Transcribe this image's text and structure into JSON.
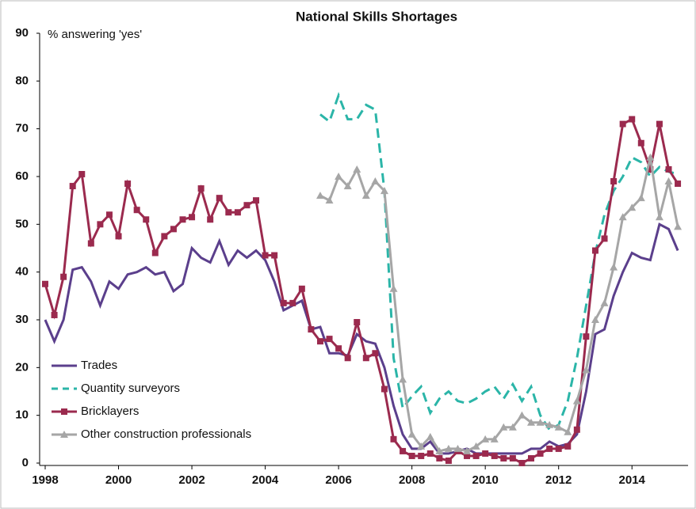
{
  "chart_data": {
    "type": "line",
    "title": "National Skills Shortages",
    "y_label": "% answering 'yes'",
    "x": [
      1998,
      1998.25,
      1998.5,
      1998.75,
      1999,
      1999.25,
      1999.5,
      1999.75,
      2000,
      2000.25,
      2000.5,
      2000.75,
      2001,
      2001.25,
      2001.5,
      2001.75,
      2002,
      2002.25,
      2002.5,
      2002.75,
      2003,
      2003.25,
      2003.5,
      2003.75,
      2004,
      2004.25,
      2004.5,
      2004.75,
      2005,
      2005.25,
      2005.5,
      2005.75,
      2006,
      2006.25,
      2006.5,
      2006.75,
      2007,
      2007.25,
      2007.5,
      2007.75,
      2008,
      2008.25,
      2008.5,
      2008.75,
      2009,
      2009.25,
      2009.5,
      2009.75,
      2010,
      2010.25,
      2010.5,
      2010.75,
      2011,
      2011.25,
      2011.5,
      2011.75,
      2012,
      2012.25,
      2012.5,
      2012.75,
      2013,
      2013.25,
      2013.5,
      2013.75,
      2014,
      2014.25,
      2014.5,
      2014.75,
      2015,
      2015.25
    ],
    "series": [
      {
        "name": "Trades",
        "color": "#5b3f8c",
        "marker": "none",
        "dash": false,
        "values": [
          30,
          25.5,
          30,
          40.5,
          41,
          38,
          33,
          38,
          36.5,
          39.5,
          40,
          41,
          39.5,
          40,
          36,
          37.5,
          45,
          43,
          42,
          46.5,
          41.5,
          44.5,
          43,
          44.5,
          42.5,
          38,
          32,
          33,
          34,
          28,
          28.5,
          23,
          23,
          22.5,
          27,
          25.5,
          25,
          20,
          12,
          6,
          3,
          3,
          4.5,
          2,
          2,
          2.5,
          3,
          2,
          2,
          2,
          2,
          2,
          2,
          3,
          3,
          4.5,
          3.5,
          4,
          6,
          15,
          27,
          28,
          35,
          40,
          44,
          43,
          42.5,
          50,
          49,
          44.5
        ]
      },
      {
        "name": "Quantity surveyors",
        "color": "#2bb5a8",
        "marker": "none",
        "dash": true,
        "values": [
          null,
          null,
          null,
          null,
          null,
          null,
          null,
          null,
          null,
          null,
          null,
          null,
          null,
          null,
          null,
          null,
          null,
          null,
          null,
          null,
          null,
          null,
          null,
          null,
          null,
          null,
          null,
          null,
          null,
          null,
          73,
          71.5,
          77,
          72,
          72,
          75,
          74,
          57,
          22,
          11.5,
          14,
          16,
          10.5,
          13.5,
          15,
          13,
          12.5,
          13.5,
          15,
          16,
          13.5,
          16.5,
          13,
          16,
          10,
          7,
          8,
          13,
          22,
          33,
          44,
          52,
          57,
          60,
          64,
          63,
          60,
          62,
          61,
          60.5
        ]
      },
      {
        "name": "Bricklayers",
        "color": "#9b2a4e",
        "marker": "square",
        "dash": false,
        "values": [
          37.5,
          31,
          39,
          58,
          60.5,
          46,
          50,
          52,
          47.5,
          58.5,
          53,
          51,
          44,
          47.5,
          49,
          51,
          51.5,
          57.5,
          51,
          55.5,
          52.5,
          52.5,
          54,
          55,
          43.5,
          43.5,
          33.5,
          33.5,
          36.5,
          28,
          25.5,
          26,
          24,
          22,
          29.5,
          22,
          23,
          15.5,
          5,
          2.5,
          1.5,
          1.5,
          2,
          1,
          0.5,
          2.5,
          1.5,
          1.5,
          2,
          1.5,
          1,
          1,
          0,
          1,
          2,
          3,
          3,
          3.5,
          7,
          26.5,
          44.5,
          47,
          59,
          71,
          72,
          67,
          61.5,
          71,
          61.5,
          58.5
        ]
      },
      {
        "name": "Other construction professionals",
        "color": "#a6a6a6",
        "marker": "triangle",
        "dash": false,
        "values": [
          null,
          null,
          null,
          null,
          null,
          null,
          null,
          null,
          null,
          null,
          null,
          null,
          null,
          null,
          null,
          null,
          null,
          null,
          null,
          null,
          null,
          null,
          null,
          null,
          null,
          null,
          null,
          null,
          null,
          null,
          56,
          55,
          60,
          58,
          61.5,
          56,
          59,
          57,
          36.5,
          17.5,
          6,
          3.5,
          5.5,
          2.5,
          3,
          3,
          2.5,
          3.5,
          5,
          5,
          7.5,
          7.5,
          10,
          8.5,
          8.5,
          8,
          7.5,
          6.5,
          13,
          19.5,
          30,
          33.5,
          41,
          51.5,
          53.5,
          55.5,
          64,
          51.5,
          59,
          49.5
        ]
      }
    ],
    "xlim": [
      1998,
      2015.4
    ],
    "xticks": [
      1998,
      2000,
      2002,
      2004,
      2006,
      2008,
      2010,
      2012,
      2014
    ],
    "ylim": [
      0,
      90
    ],
    "yticks": [
      0,
      10,
      20,
      30,
      40,
      50,
      60,
      70,
      80,
      90
    ],
    "legend": "lower left"
  }
}
